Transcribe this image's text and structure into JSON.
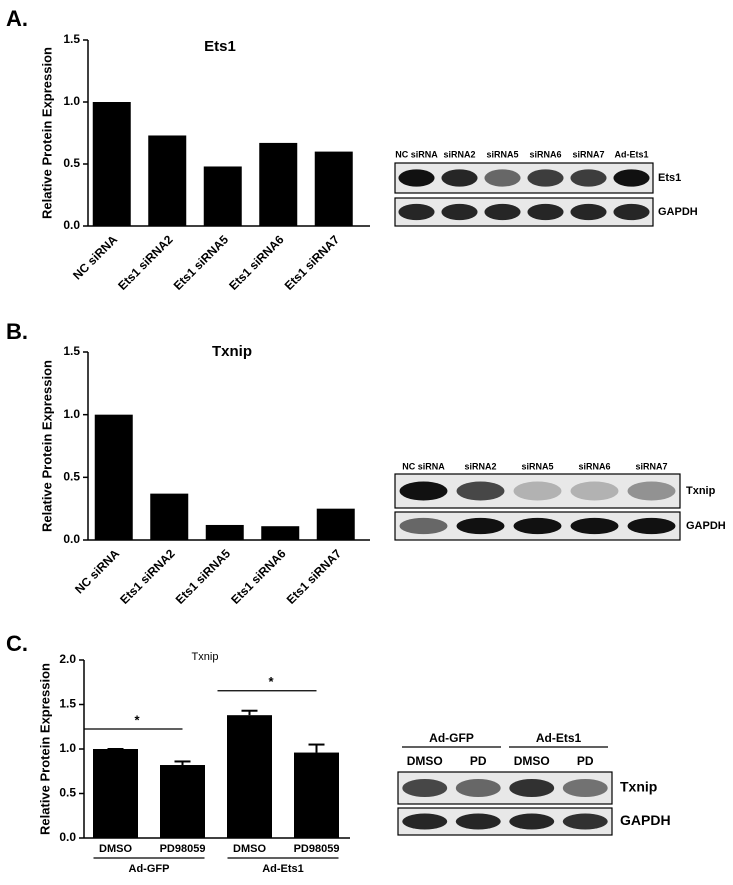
{
  "panel_labels": [
    "A.",
    "B.",
    "C."
  ],
  "chart_data": [
    {
      "type": "bar",
      "title": "Ets1",
      "y_label": "Relative Protein Expression",
      "categories": [
        "NC siRNA",
        "Ets1 siRNA2",
        "Ets1 siRNA5",
        "Ets1 siRNA6",
        "Ets1 siRNA7"
      ],
      "values": [
        1.0,
        0.73,
        0.48,
        0.67,
        0.6
      ],
      "color": "#000000",
      "ylim": [
        0,
        1.5
      ],
      "yticks": [
        {
          "value": 0,
          "label": "0.0"
        },
        0.5,
        {
          "value": 1,
          "label": "1.0"
        },
        1.5
      ]
    },
    {
      "type": "bar",
      "title": "Txnip",
      "y_label": "Relative Protein Expression",
      "categories": [
        "NC siRNA",
        "Ets1 siRNA2",
        "Ets1 siRNA5",
        "Ets1 siRNA6",
        "Ets1 siRNA7"
      ],
      "values": [
        1.0,
        0.37,
        0.12,
        0.11,
        0.25
      ],
      "color": "#000000",
      "ylim": [
        0,
        1.5
      ],
      "yticks": [
        {
          "value": 0,
          "label": "0.0"
        },
        0.5,
        {
          "value": 1,
          "label": "1.0"
        },
        1.5
      ]
    },
    {
      "type": "bar",
      "title": "Txnip",
      "y_label": "Relative Protein Expression",
      "categories": [
        "DMSO",
        "PD98059",
        "DMSO",
        "PD98059"
      ],
      "groups": [
        "Ad-GFP",
        "Ad-Ets1"
      ],
      "values": [
        1.0,
        0.82,
        1.38,
        0.96
      ],
      "errors": [
        0,
        0.04,
        0.05,
        0.09
      ],
      "color": "#000000",
      "significance": [
        "*",
        "*"
      ],
      "ylim": [
        0,
        2
      ],
      "yticks": [
        {
          "value": 0,
          "label": "0.0"
        },
        0.5,
        {
          "value": 1,
          "label": "1.0"
        },
        1.5,
        {
          "value": 2,
          "label": "2.0"
        }
      ]
    }
  ],
  "blots": [
    {
      "lanes": [
        "NC siRNA",
        "siRNA2",
        "siRNA5",
        "siRNA6",
        "siRNA7",
        "Ad-Ets1"
      ],
      "rows": [
        "Ets1",
        "GAPDH"
      ]
    },
    {
      "lanes": [
        "NC siRNA",
        "siRNA2",
        "siRNA5",
        "siRNA6",
        "siRNA7"
      ],
      "rows": [
        "Txnip",
        "GAPDH"
      ]
    },
    {
      "groups": [
        "Ad-GFP",
        "Ad-Ets1"
      ],
      "lanes": [
        "DMSO",
        "PD",
        "DMSO",
        "PD"
      ],
      "rows": [
        "Txnip",
        "GAPDH"
      ]
    }
  ]
}
